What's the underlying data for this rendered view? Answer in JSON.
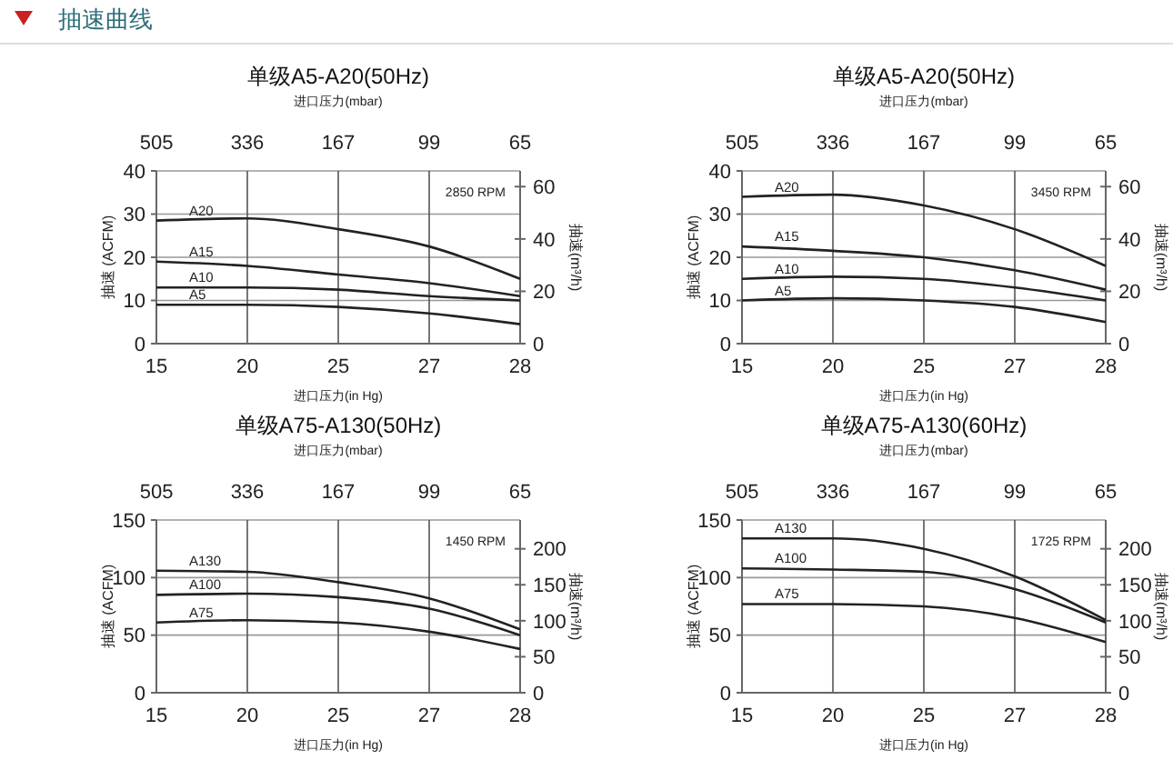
{
  "chart_data": [
    {
      "type": "line",
      "title": "单级A5-A20(50Hz)",
      "xlabel": "进口压力(in Hg)",
      "x2label": "进口压力(mbar)",
      "ylabel": "抽速 (ACFM)",
      "y2label": "抽速(m³/h)",
      "annotations": [
        "2850 RPM",
        "505",
        "336",
        "167",
        "99",
        "65",
        "抽速曲线"
      ],
      "categories": [
        "15",
        "20",
        "25",
        "27",
        "28"
      ],
      "ylim": [
        0,
        40
      ],
      "yticks": [
        0,
        10,
        20,
        30,
        40
      ],
      "y2lim": [
        0,
        66
      ],
      "y2ticks": [
        0,
        20,
        40,
        60
      ],
      "grid": true,
      "legend": false,
      "series": [
        {
          "name": "A20",
          "color": "#222222",
          "values": [
            28.5,
            29,
            26.5,
            22.5,
            15
          ]
        },
        {
          "name": "A15",
          "color": "#222222",
          "values": [
            19,
            18,
            16,
            14,
            11
          ]
        },
        {
          "name": "A10",
          "color": "#222222",
          "values": [
            13,
            13,
            12.5,
            11,
            10
          ]
        },
        {
          "name": "A5",
          "color": "#222222",
          "values": [
            9,
            9,
            8.5,
            7,
            4.5
          ]
        }
      ]
    },
    {
      "type": "line",
      "title": "单级A5-A20(50Hz)",
      "xlabel": "进口压力(in Hg)",
      "x2label": "进口压力(mbar)",
      "ylabel": "抽速 (ACFM)",
      "y2label": "抽速(m³/h)",
      "annotations": [
        "3450 RPM",
        "505",
        "336",
        "167",
        "99",
        "65"
      ],
      "categories": [
        "15",
        "20",
        "25",
        "27",
        "28"
      ],
      "ylim": [
        0,
        40
      ],
      "yticks": [
        0,
        10,
        20,
        30,
        40
      ],
      "y2lim": [
        0,
        66
      ],
      "y2ticks": [
        0,
        20,
        40,
        60
      ],
      "grid": true,
      "legend": false,
      "series": [
        {
          "name": "A20",
          "color": "#222222",
          "values": [
            34,
            34.5,
            32,
            26.5,
            18
          ]
        },
        {
          "name": "A15",
          "color": "#222222",
          "values": [
            22.5,
            21.5,
            20,
            17,
            12.5
          ]
        },
        {
          "name": "A10",
          "color": "#222222",
          "values": [
            15,
            15.5,
            15,
            13,
            10
          ]
        },
        {
          "name": "A5",
          "color": "#222222",
          "values": [
            10,
            10.5,
            10,
            8.5,
            5
          ]
        }
      ]
    },
    {
      "type": "line",
      "title": "单级A75-A130(50Hz)",
      "xlabel": "进口压力(in Hg)",
      "x2label": "进口压力(mbar)",
      "ylabel": "抽速 (ACFM)",
      "y2label": "抽速(m³/h)",
      "annotations": [
        "1450 RPM",
        "505",
        "336",
        "167",
        "99",
        "65"
      ],
      "categories": [
        "15",
        "20",
        "25",
        "27",
        "28"
      ],
      "ylim": [
        0,
        150
      ],
      "yticks": [
        0,
        50,
        100,
        150
      ],
      "y2lim": [
        0,
        240
      ],
      "y2ticks": [
        0,
        50,
        100,
        150,
        200
      ],
      "grid": true,
      "legend": false,
      "series": [
        {
          "name": "A130",
          "color": "#222222",
          "values": [
            106,
            105,
            96,
            82,
            55
          ]
        },
        {
          "name": "A100",
          "color": "#222222",
          "values": [
            85,
            86,
            83,
            73,
            50
          ]
        },
        {
          "name": "A75",
          "color": "#222222",
          "values": [
            61,
            63,
            61,
            53,
            38
          ]
        }
      ]
    },
    {
      "type": "line",
      "title": "单级A75-A130(60Hz)",
      "xlabel": "进口压力(in Hg)",
      "x2label": "进口压力(mbar)",
      "ylabel": "抽速 (ACFM)",
      "y2label": "抽速(m³/h)",
      "annotations": [
        "1725 RPM",
        "505",
        "336",
        "167",
        "99",
        "65"
      ],
      "categories": [
        "15",
        "20",
        "25",
        "27",
        "28"
      ],
      "ylim": [
        0,
        150
      ],
      "yticks": [
        0,
        50,
        100,
        150
      ],
      "y2lim": [
        0,
        240
      ],
      "y2ticks": [
        0,
        50,
        100,
        150,
        200
      ],
      "grid": true,
      "legend": false,
      "series": [
        {
          "name": "A130",
          "color": "#222222",
          "values": [
            134,
            134,
            125,
            101,
            63
          ]
        },
        {
          "name": "A100",
          "color": "#222222",
          "values": [
            108,
            107,
            105,
            90,
            61
          ]
        },
        {
          "name": "A75",
          "color": "#222222",
          "values": [
            77,
            77,
            75,
            65,
            44
          ]
        }
      ]
    }
  ]
}
